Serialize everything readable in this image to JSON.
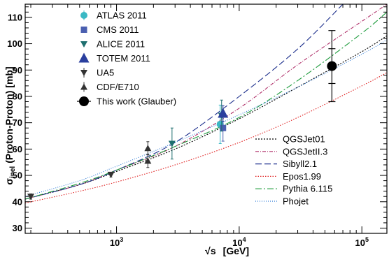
{
  "chart_data": {
    "type": "scatter",
    "xscale": "log",
    "xlim": [
      180,
      160000
    ],
    "ylim": [
      28,
      115
    ],
    "xlabel_root": "√s",
    "xlabel_unit": "[GeV]",
    "ylabel_main": "σ",
    "ylabel_sub": "inel",
    "ylabel_rest": "(Proton-Proton)   [mb]",
    "xticks": [
      {
        "value": 1000,
        "base": "10",
        "exp": "3"
      },
      {
        "value": 10000,
        "base": "10",
        "exp": "4"
      },
      {
        "value": 100000,
        "base": "10",
        "exp": "5"
      }
    ],
    "yticks": [
      30,
      40,
      50,
      60,
      70,
      80,
      90,
      100,
      110
    ],
    "data_series": [
      {
        "name": "ATLAS 2011",
        "marker": "circle",
        "color": "#3ab8c4",
        "points": [
          {
            "x": 7000,
            "y": 69.4,
            "err": 7.3
          }
        ]
      },
      {
        "name": "CMS 2011",
        "marker": "square",
        "color": "#4a5fb0",
        "points": [
          {
            "x": 7000,
            "y": 68.0,
            "err": 5.0
          }
        ]
      },
      {
        "name": "ALICE 2011",
        "marker": "tri-down",
        "color": "#1e6f6f",
        "points": [
          {
            "x": 2760,
            "y": 62.1,
            "err": 5.9
          },
          {
            "x": 7000,
            "y": 72.7,
            "err": 5.9
          }
        ]
      },
      {
        "name": "TOTEM 2011",
        "marker": "tri-up-big",
        "color": "#2a3f9e",
        "points": [
          {
            "x": 7000,
            "y": 73.5,
            "err": 3.0
          }
        ]
      },
      {
        "name": "UA5",
        "marker": "tri-down",
        "color": "#333333",
        "points": [
          {
            "x": 200,
            "y": 42.0,
            "err": 1.0
          },
          {
            "x": 900,
            "y": 50.3,
            "err": 0.9
          }
        ]
      },
      {
        "name": "CDF/E710",
        "marker": "tri-up",
        "color": "#333333",
        "points": [
          {
            "x": 1800,
            "y": 55.5,
            "err": 2.5
          },
          {
            "x": 1800,
            "y": 60.3,
            "err": 2.5
          }
        ]
      },
      {
        "name": "This work (Glauber)",
        "marker": "circle-big",
        "color": "#000000",
        "points": [
          {
            "x": 57000,
            "y": 91.5,
            "err": 6.6,
            "err_outer": 13.5
          }
        ]
      }
    ],
    "model_series": [
      {
        "name": "QGSJet01",
        "color": "#000000",
        "dash": "2,2",
        "x": [
          180,
          500,
          1000,
          3000,
          10000,
          30000,
          100000,
          160000
        ],
        "y": [
          41.0,
          46.5,
          51.5,
          60.0,
          71.5,
          83.5,
          97.0,
          103.0
        ]
      },
      {
        "name": "QGSJetII.3",
        "color": "#b0306a",
        "dash": "5,2,1,2",
        "x": [
          180,
          500,
          1000,
          3000,
          10000,
          30000,
          100000,
          160000
        ],
        "y": [
          41.0,
          46.5,
          52.0,
          61.0,
          75.5,
          92.0,
          108.5,
          115.0
        ]
      },
      {
        "name": "Sibyll2.1",
        "color": "#1c2f8c",
        "dash": "9,4",
        "x": [
          180,
          500,
          1000,
          3000,
          10000,
          30000,
          70000
        ],
        "y": [
          41.0,
          46.5,
          52.0,
          62.5,
          80.0,
          98.0,
          115.0
        ]
      },
      {
        "name": "Epos1.99",
        "color": "#e02020",
        "dash": "1.5,2",
        "x": [
          180,
          500,
          1000,
          3000,
          10000,
          30000,
          100000,
          160000
        ],
        "y": [
          39.5,
          44.0,
          47.5,
          54.0,
          62.5,
          72.0,
          84.0,
          89.0
        ]
      },
      {
        "name": "Pythia 6.115",
        "color": "#1b9a3a",
        "dash": "9,3,2,3",
        "x": [
          180,
          500,
          1000,
          3000,
          10000,
          30000,
          100000,
          160000
        ],
        "y": [
          41.0,
          47.0,
          52.0,
          61.0,
          72.0,
          86.0,
          104.0,
          112.0
        ]
      },
      {
        "name": "Phojet",
        "color": "#2f7bd6",
        "dash": "1,2",
        "x": [
          180,
          500,
          1000,
          3000,
          10000,
          30000,
          100000,
          160000
        ],
        "y": [
          42.0,
          48.0,
          53.5,
          62.5,
          73.0,
          83.5,
          96.0,
          101.5
        ]
      }
    ]
  }
}
